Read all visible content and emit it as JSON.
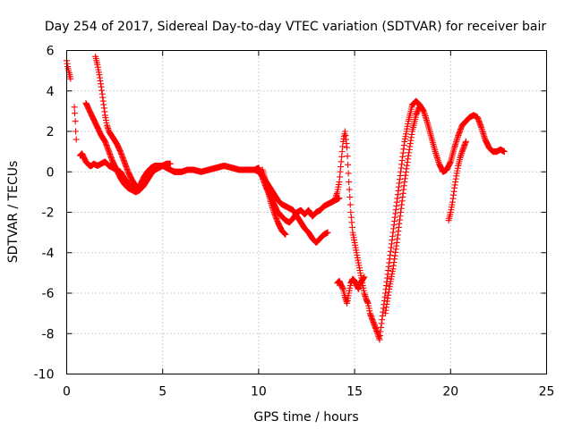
{
  "chart_data": {
    "type": "scatter",
    "title": "Day 254 of 2017, Sidereal Day-to-day VTEC variation (SDTVAR) for receiver bair",
    "xlabel": "GPS time / hours",
    "ylabel": "SDTVAR / TECUs",
    "xlim": [
      0,
      25
    ],
    "ylim": [
      -10,
      6
    ],
    "xticks": [
      0,
      5,
      10,
      15,
      20,
      25
    ],
    "yticks": [
      -10,
      -8,
      -6,
      -4,
      -2,
      0,
      2,
      4,
      6
    ],
    "grid": true,
    "legend": "none",
    "marker": "plus",
    "color": "#ff0000",
    "series": [
      {
        "x": [
          0.0,
          0.05,
          0.1,
          0.15,
          0.2
        ],
        "y": [
          5.5,
          5.2,
          5.0,
          4.8,
          4.6
        ]
      },
      {
        "x": [
          0.4,
          0.42,
          0.45,
          0.47,
          0.5
        ],
        "y": [
          3.2,
          2.9,
          2.5,
          2.0,
          1.6
        ]
      },
      {
        "x": [
          0.7,
          0.8,
          0.9,
          1.0,
          1.1,
          1.2,
          1.3,
          1.4,
          1.6,
          1.8,
          2.0,
          2.2,
          2.4,
          2.6,
          2.8,
          3.0,
          3.2,
          3.4,
          3.6,
          3.8,
          4.0,
          4.2,
          4.4,
          4.6,
          4.8,
          5.0,
          5.2,
          5.4,
          5.6,
          5.8,
          6.0,
          6.3,
          6.6,
          7.0,
          7.4,
          7.8,
          8.2,
          8.6,
          9.0,
          9.4,
          9.8,
          10.0,
          10.2,
          10.4,
          10.6,
          10.8,
          11.0,
          11.2,
          11.4,
          11.6,
          11.8,
          12.0,
          12.2,
          12.4,
          12.6,
          12.8,
          13.0,
          13.2,
          13.4,
          13.6,
          13.8,
          14.0,
          14.2
        ],
        "y": [
          0.8,
          0.9,
          0.7,
          0.5,
          0.4,
          0.3,
          0.3,
          0.4,
          0.3,
          0.4,
          0.5,
          0.3,
          0.2,
          0.1,
          0.0,
          -0.3,
          -0.6,
          -0.8,
          -0.9,
          -0.7,
          -0.3,
          0.0,
          0.2,
          0.3,
          0.3,
          0.3,
          0.2,
          0.1,
          0.0,
          0.0,
          0.0,
          0.1,
          0.1,
          0.0,
          0.1,
          0.2,
          0.3,
          0.2,
          0.1,
          0.1,
          0.1,
          0.2,
          -0.3,
          -0.8,
          -1.2,
          -1.6,
          -2.0,
          -2.2,
          -2.4,
          -2.5,
          -2.3,
          -2.0,
          -1.9,
          -2.1,
          -1.9,
          -2.2,
          -2.0,
          -1.9,
          -1.7,
          -1.6,
          -1.5,
          -1.4,
          -1.3
        ]
      },
      {
        "x": [
          1.0,
          1.1,
          1.2,
          1.4,
          1.6,
          1.8,
          2.0,
          2.2,
          2.4,
          2.6,
          2.8,
          3.0,
          3.2,
          3.4,
          3.6,
          3.8,
          4.0,
          4.2,
          4.4,
          4.6,
          4.8,
          5.0,
          5.2,
          5.4
        ],
        "y": [
          3.4,
          3.2,
          3.0,
          2.6,
          2.2,
          1.8,
          1.5,
          1.0,
          0.5,
          0.1,
          -0.3,
          -0.6,
          -0.8,
          -0.9,
          -1.0,
          -0.9,
          -0.7,
          -0.4,
          -0.1,
          0.1,
          0.2,
          0.3,
          0.4,
          0.4
        ]
      },
      {
        "x": [
          1.5,
          1.6,
          1.7,
          1.8,
          1.9,
          2.0,
          2.1,
          2.2,
          2.4,
          2.6,
          2.8,
          3.0,
          3.2,
          3.4,
          3.6,
          3.8
        ],
        "y": [
          5.7,
          5.3,
          4.8,
          4.2,
          3.5,
          2.8,
          2.3,
          2.0,
          1.7,
          1.4,
          1.0,
          0.5,
          0.0,
          -0.4,
          -0.7,
          -0.9
        ]
      },
      {
        "x": [
          9.8,
          10.0,
          10.2,
          10.4,
          10.6,
          10.8,
          11.0,
          11.2,
          11.4,
          11.6,
          11.8,
          12.0,
          12.2,
          12.4,
          12.6,
          12.8,
          13.0,
          13.2,
          13.4,
          13.6
        ],
        "y": [
          0.1,
          0.0,
          -0.2,
          -0.5,
          -0.8,
          -1.1,
          -1.4,
          -1.6,
          -1.7,
          -1.8,
          -1.9,
          -2.2,
          -2.5,
          -2.8,
          -3.0,
          -3.3,
          -3.5,
          -3.3,
          -3.1,
          -3.0
        ]
      },
      {
        "x": [
          10.2,
          10.4,
          10.6,
          10.8,
          11.0,
          11.2,
          11.4
        ],
        "y": [
          0.1,
          -0.6,
          -1.4,
          -2.0,
          -2.5,
          -2.9,
          -3.1
        ]
      },
      {
        "x": [
          14.0,
          14.1,
          14.2,
          14.3,
          14.4,
          14.5,
          14.6,
          14.7,
          14.8,
          14.9,
          15.0,
          15.1,
          15.2,
          15.3,
          15.4,
          15.5,
          15.6,
          15.7,
          15.8,
          16.0,
          16.2,
          16.3,
          16.4,
          16.6,
          16.8,
          17.0,
          17.2,
          17.4,
          17.6,
          17.8,
          18.0,
          18.2,
          18.4,
          18.6,
          18.8,
          19.0,
          19.2,
          19.4,
          19.6,
          19.8,
          20.0,
          20.2,
          20.4,
          20.6,
          20.8,
          21.0,
          21.2,
          21.4,
          21.6,
          21.8,
          22.0,
          22.2,
          22.4,
          22.6,
          22.8
        ],
        "y": [
          -1.3,
          -1.0,
          -0.5,
          0.5,
          1.5,
          2.0,
          1.2,
          -0.5,
          -2.0,
          -3.0,
          -3.5,
          -4.0,
          -4.5,
          -5.0,
          -5.5,
          -6.0,
          -6.3,
          -6.5,
          -7.0,
          -7.5,
          -8.0,
          -8.3,
          -7.5,
          -6.0,
          -4.5,
          -3.0,
          -1.5,
          0.0,
          1.5,
          2.5,
          3.3,
          3.5,
          3.3,
          3.0,
          2.4,
          1.7,
          1.0,
          0.4,
          0.0,
          0.1,
          0.5,
          1.2,
          1.8,
          2.3,
          2.5,
          2.7,
          2.8,
          2.7,
          2.2,
          1.6,
          1.2,
          1.0,
          1.0,
          1.1,
          1.0
        ]
      },
      {
        "x": [
          14.1,
          14.2,
          14.3,
          14.4,
          14.5,
          14.6,
          14.7,
          14.8,
          14.9,
          15.0,
          15.1,
          15.2,
          15.3,
          15.5
        ],
        "y": [
          -5.5,
          -5.4,
          -5.6,
          -5.8,
          -6.2,
          -6.5,
          -6.0,
          -5.5,
          -5.3,
          -5.4,
          -5.6,
          -5.8,
          -5.5,
          -5.2
        ]
      },
      {
        "x": [
          16.6,
          16.8,
          17.0,
          17.2,
          17.4,
          17.6,
          17.8,
          18.0,
          18.2,
          18.4
        ],
        "y": [
          -7.0,
          -5.8,
          -4.8,
          -3.5,
          -2.0,
          -0.5,
          0.8,
          2.0,
          2.8,
          3.3
        ]
      },
      {
        "x": [
          19.9,
          20.0,
          20.1,
          20.2,
          20.3,
          20.4,
          20.5,
          20.6,
          20.8
        ],
        "y": [
          -2.4,
          -2.0,
          -1.5,
          -0.8,
          -0.2,
          0.3,
          0.7,
          1.0,
          1.5
        ]
      }
    ]
  }
}
